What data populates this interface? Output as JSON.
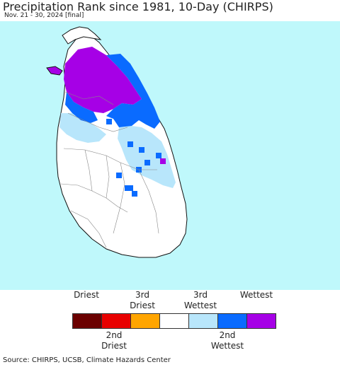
{
  "header": {
    "title": "Precipitation Rank since 1981, 10-Day (CHIRPS)",
    "subtitle": "Nov. 21 - 30, 2024 [final]"
  },
  "legend": {
    "top_labels": [
      {
        "line1": "",
        "line2": "Driest"
      },
      {
        "line1": "3rd",
        "line2": "Driest"
      },
      {
        "line1": "3rd",
        "line2": "Wettest"
      },
      {
        "line1": "",
        "line2": "Wettest"
      }
    ],
    "bottom_labels": [
      {
        "line1": "2nd",
        "line2": "Driest"
      },
      {
        "line1": "2nd",
        "line2": "Wettest"
      }
    ],
    "colors": [
      "#6b0000",
      "#e80000",
      "#ffa500",
      "#ffffff",
      "#b8e6fb",
      "#0a6bff",
      "#a600e6"
    ]
  },
  "map": {
    "background_color": "#bff8fb",
    "land_color": "#ffffff"
  },
  "footer": {
    "source": "Source: CHIRPS, UCSB, Climate Hazards Center"
  }
}
